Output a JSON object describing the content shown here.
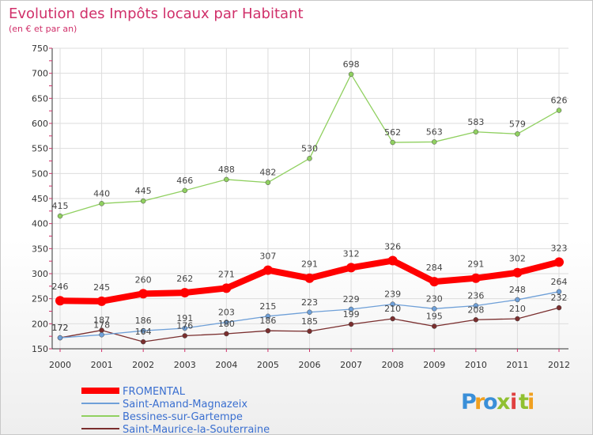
{
  "chart_data": {
    "type": "line",
    "title": "Evolution des Impôts locaux par Habitant",
    "subtitle": "(en € et par an)",
    "x": [
      "2000",
      "2001",
      "2002",
      "2003",
      "2004",
      "2005",
      "2006",
      "2007",
      "2008",
      "2009",
      "2010",
      "2011",
      "2012"
    ],
    "ylim": [
      150,
      750
    ],
    "yticks": [
      150,
      200,
      250,
      300,
      350,
      400,
      450,
      500,
      550,
      600,
      650,
      700,
      750
    ],
    "grid": true,
    "series": [
      {
        "name": "FROMENTAL",
        "color": "#ff0000",
        "values": [
          246,
          245,
          260,
          262,
          271,
          307,
          291,
          312,
          326,
          284,
          291,
          302,
          323
        ]
      },
      {
        "name": "Saint-Amand-Magnazeix",
        "color": "#6fa0d8",
        "values": [
          172,
          178,
          186,
          191,
          203,
          215,
          223,
          229,
          239,
          230,
          236,
          248,
          264
        ]
      },
      {
        "name": "Bessines-sur-Gartempe",
        "color": "#90d060",
        "values": [
          415,
          440,
          445,
          466,
          488,
          482,
          530,
          698,
          562,
          563,
          583,
          579,
          626
        ]
      },
      {
        "name": "Saint-Maurice-la-Souterraine",
        "color": "#7a2e2e",
        "values": [
          172,
          187,
          164,
          176,
          180,
          186,
          185,
          199,
          210,
          195,
          208,
          210,
          232
        ]
      }
    ]
  },
  "brand": {
    "letters": [
      "P",
      "r",
      "o",
      "x",
      "i",
      "t",
      "i"
    ],
    "colors": [
      "#3a8fd8",
      "#f0a020",
      "#3a8fd8",
      "#90c030",
      "#e04040",
      "#90c030",
      "#f0a020"
    ]
  }
}
